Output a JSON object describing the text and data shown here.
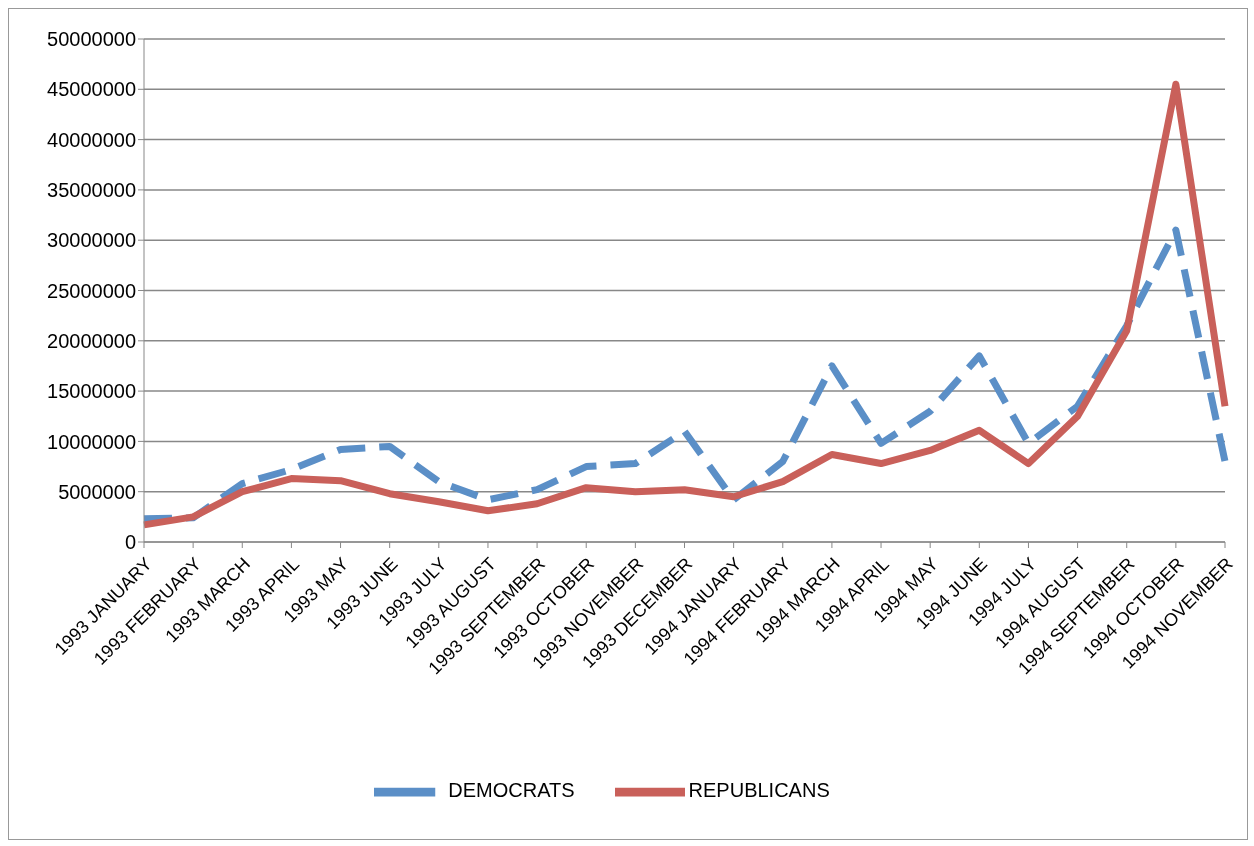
{
  "chart_data": {
    "type": "line",
    "categories": [
      "1993 JANUARY",
      "1993 FEBRUARY",
      "1993 MARCH",
      "1993 APRIL",
      "1993 MAY",
      "1993 JUNE",
      "1993 JULY",
      "1993 AUGUST",
      "1993 SEPTEMBER",
      "1993 OCTOBER",
      "1993 NOVEMBER",
      "1993 DECEMBER",
      "1994 JANUARY",
      "1994 FEBRUARY",
      "1994 MARCH",
      "1994 APRIL",
      "1994 MAY",
      "1994 JUNE",
      "1994 JULY",
      "1994 AUGUST",
      "1994 SEPTEMBER",
      "1994 OCTOBER",
      "1994 NOVEMBER"
    ],
    "series": [
      {
        "name": "DEMOCRATS",
        "color": "#5b8fc7",
        "line_style": "dashed",
        "values": [
          2300000,
          2400000,
          5800000,
          7200000,
          9200000,
          9500000,
          6000000,
          4200000,
          5200000,
          7500000,
          7800000,
          11000000,
          4200000,
          8000000,
          17500000,
          9800000,
          13000000,
          18500000,
          9800000,
          13500000,
          21500000,
          31000000,
          8000000
        ]
      },
      {
        "name": "REPUBLICANS",
        "color": "#c9605a",
        "line_style": "solid",
        "values": [
          1700000,
          2500000,
          5000000,
          6300000,
          6100000,
          4800000,
          4000000,
          3100000,
          3800000,
          5400000,
          5000000,
          5200000,
          4500000,
          6000000,
          8700000,
          7800000,
          9100000,
          11100000,
          7800000,
          12500000,
          21000000,
          45500000,
          13500000
        ]
      }
    ],
    "ylim": [
      0,
      50000000
    ],
    "yticks": [
      0,
      5000000,
      10000000,
      15000000,
      20000000,
      25000000,
      30000000,
      35000000,
      40000000,
      45000000,
      50000000
    ],
    "grid": "y",
    "legend": "bottom",
    "marker": "none"
  }
}
